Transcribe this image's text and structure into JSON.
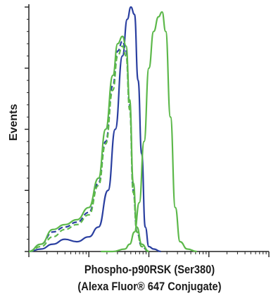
{
  "chart_data": {
    "type": "line",
    "title": "",
    "xlabel_line1": "Phospho-p90RSK (Ser380)",
    "xlabel_line2": "(Alexa Fluor® 647 Conjugate)",
    "ylabel": "Events",
    "xscale": "log",
    "xlim": [
      0,
      10
    ],
    "ylim": [
      0,
      100
    ],
    "grid": false,
    "legend": "none",
    "series": [
      {
        "color": "#2a3fa0",
        "dash": "solid",
        "x": [
          0,
          0.5,
          1.0,
          1.5,
          2.0,
          2.5,
          2.9,
          3.3,
          3.6,
          3.9,
          4.1,
          4.25,
          4.4,
          4.55,
          4.7,
          4.85,
          5.0,
          5.2,
          5.5
        ],
        "y": [
          0,
          1,
          3,
          5,
          4,
          6,
          10,
          25,
          50,
          80,
          95,
          100,
          97,
          70,
          40,
          10,
          2,
          1,
          0
        ]
      },
      {
        "color": "#2a3fa0",
        "dash": "dashed",
        "x": [
          0,
          0.5,
          1.0,
          1.5,
          2.0,
          2.5,
          2.9,
          3.2,
          3.5,
          3.7,
          3.9,
          4.05,
          4.2,
          4.35,
          4.5,
          4.7,
          5.0
        ],
        "y": [
          0,
          3,
          8,
          10,
          12,
          16,
          28,
          45,
          68,
          82,
          86,
          82,
          60,
          25,
          8,
          2,
          0
        ]
      },
      {
        "color": "#5cb84a",
        "dash": "solid",
        "x": [
          0,
          0.5,
          1.0,
          1.5,
          2.0,
          2.5,
          2.9,
          3.2,
          3.5,
          3.7,
          3.9,
          4.05,
          4.2,
          4.35,
          4.5,
          4.7,
          5.0
        ],
        "y": [
          0,
          3,
          9,
          11,
          13,
          18,
          30,
          50,
          72,
          85,
          88,
          84,
          62,
          28,
          10,
          3,
          0
        ]
      },
      {
        "color": "#5cb84a",
        "dash": "dashed",
        "x": [
          0,
          0.5,
          1.0,
          1.5,
          2.0,
          2.5,
          2.9,
          3.2,
          3.5,
          3.7,
          3.9,
          4.05,
          4.2,
          4.35,
          4.5,
          4.7,
          5.0
        ],
        "y": [
          0,
          2,
          6,
          9,
          11,
          15,
          27,
          44,
          66,
          80,
          84,
          80,
          58,
          24,
          8,
          2,
          0
        ]
      },
      {
        "color": "#5cb84a",
        "dash": "solid",
        "x": [
          3.0,
          3.5,
          4.0,
          4.2,
          4.4,
          4.6,
          4.8,
          5.0,
          5.2,
          5.4,
          5.55,
          5.7,
          5.9,
          6.1,
          6.3,
          6.6,
          7.0
        ],
        "y": [
          0,
          0,
          1,
          3,
          8,
          20,
          45,
          75,
          90,
          96,
          98,
          90,
          55,
          18,
          4,
          1,
          0
        ]
      }
    ]
  }
}
